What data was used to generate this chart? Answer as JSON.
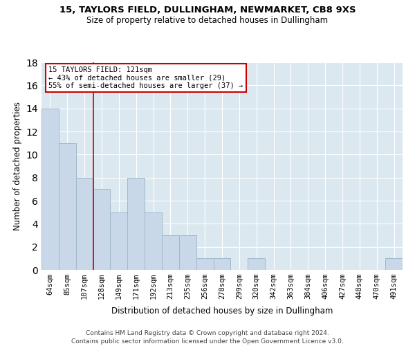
{
  "title1": "15, TAYLORS FIELD, DULLINGHAM, NEWMARKET, CB8 9XS",
  "title2": "Size of property relative to detached houses in Dullingham",
  "xlabel": "Distribution of detached houses by size in Dullingham",
  "ylabel": "Number of detached properties",
  "categories": [
    "64sqm",
    "85sqm",
    "107sqm",
    "128sqm",
    "149sqm",
    "171sqm",
    "192sqm",
    "213sqm",
    "235sqm",
    "256sqm",
    "278sqm",
    "299sqm",
    "320sqm",
    "342sqm",
    "363sqm",
    "384sqm",
    "406sqm",
    "427sqm",
    "448sqm",
    "470sqm",
    "491sqm"
  ],
  "values": [
    14,
    11,
    8,
    7,
    5,
    8,
    5,
    3,
    3,
    1,
    1,
    0,
    1,
    0,
    0,
    0,
    0,
    0,
    0,
    0,
    1
  ],
  "bar_color": "#c8d8e8",
  "bar_edge_color": "#a0b8cc",
  "vline_color": "#cc0000",
  "vline_x": 2.5,
  "annotation_text": "15 TAYLORS FIELD: 121sqm\n← 43% of detached houses are smaller (29)\n55% of semi-detached houses are larger (37) →",
  "annotation_box_color": "#ffffff",
  "annotation_box_edge": "#cc0000",
  "ylim": [
    0,
    18
  ],
  "yticks": [
    0,
    2,
    4,
    6,
    8,
    10,
    12,
    14,
    16,
    18
  ],
  "background_color": "#dce8f0",
  "footer1": "Contains HM Land Registry data © Crown copyright and database right 2024.",
  "footer2": "Contains public sector information licensed under the Open Government Licence v3.0."
}
